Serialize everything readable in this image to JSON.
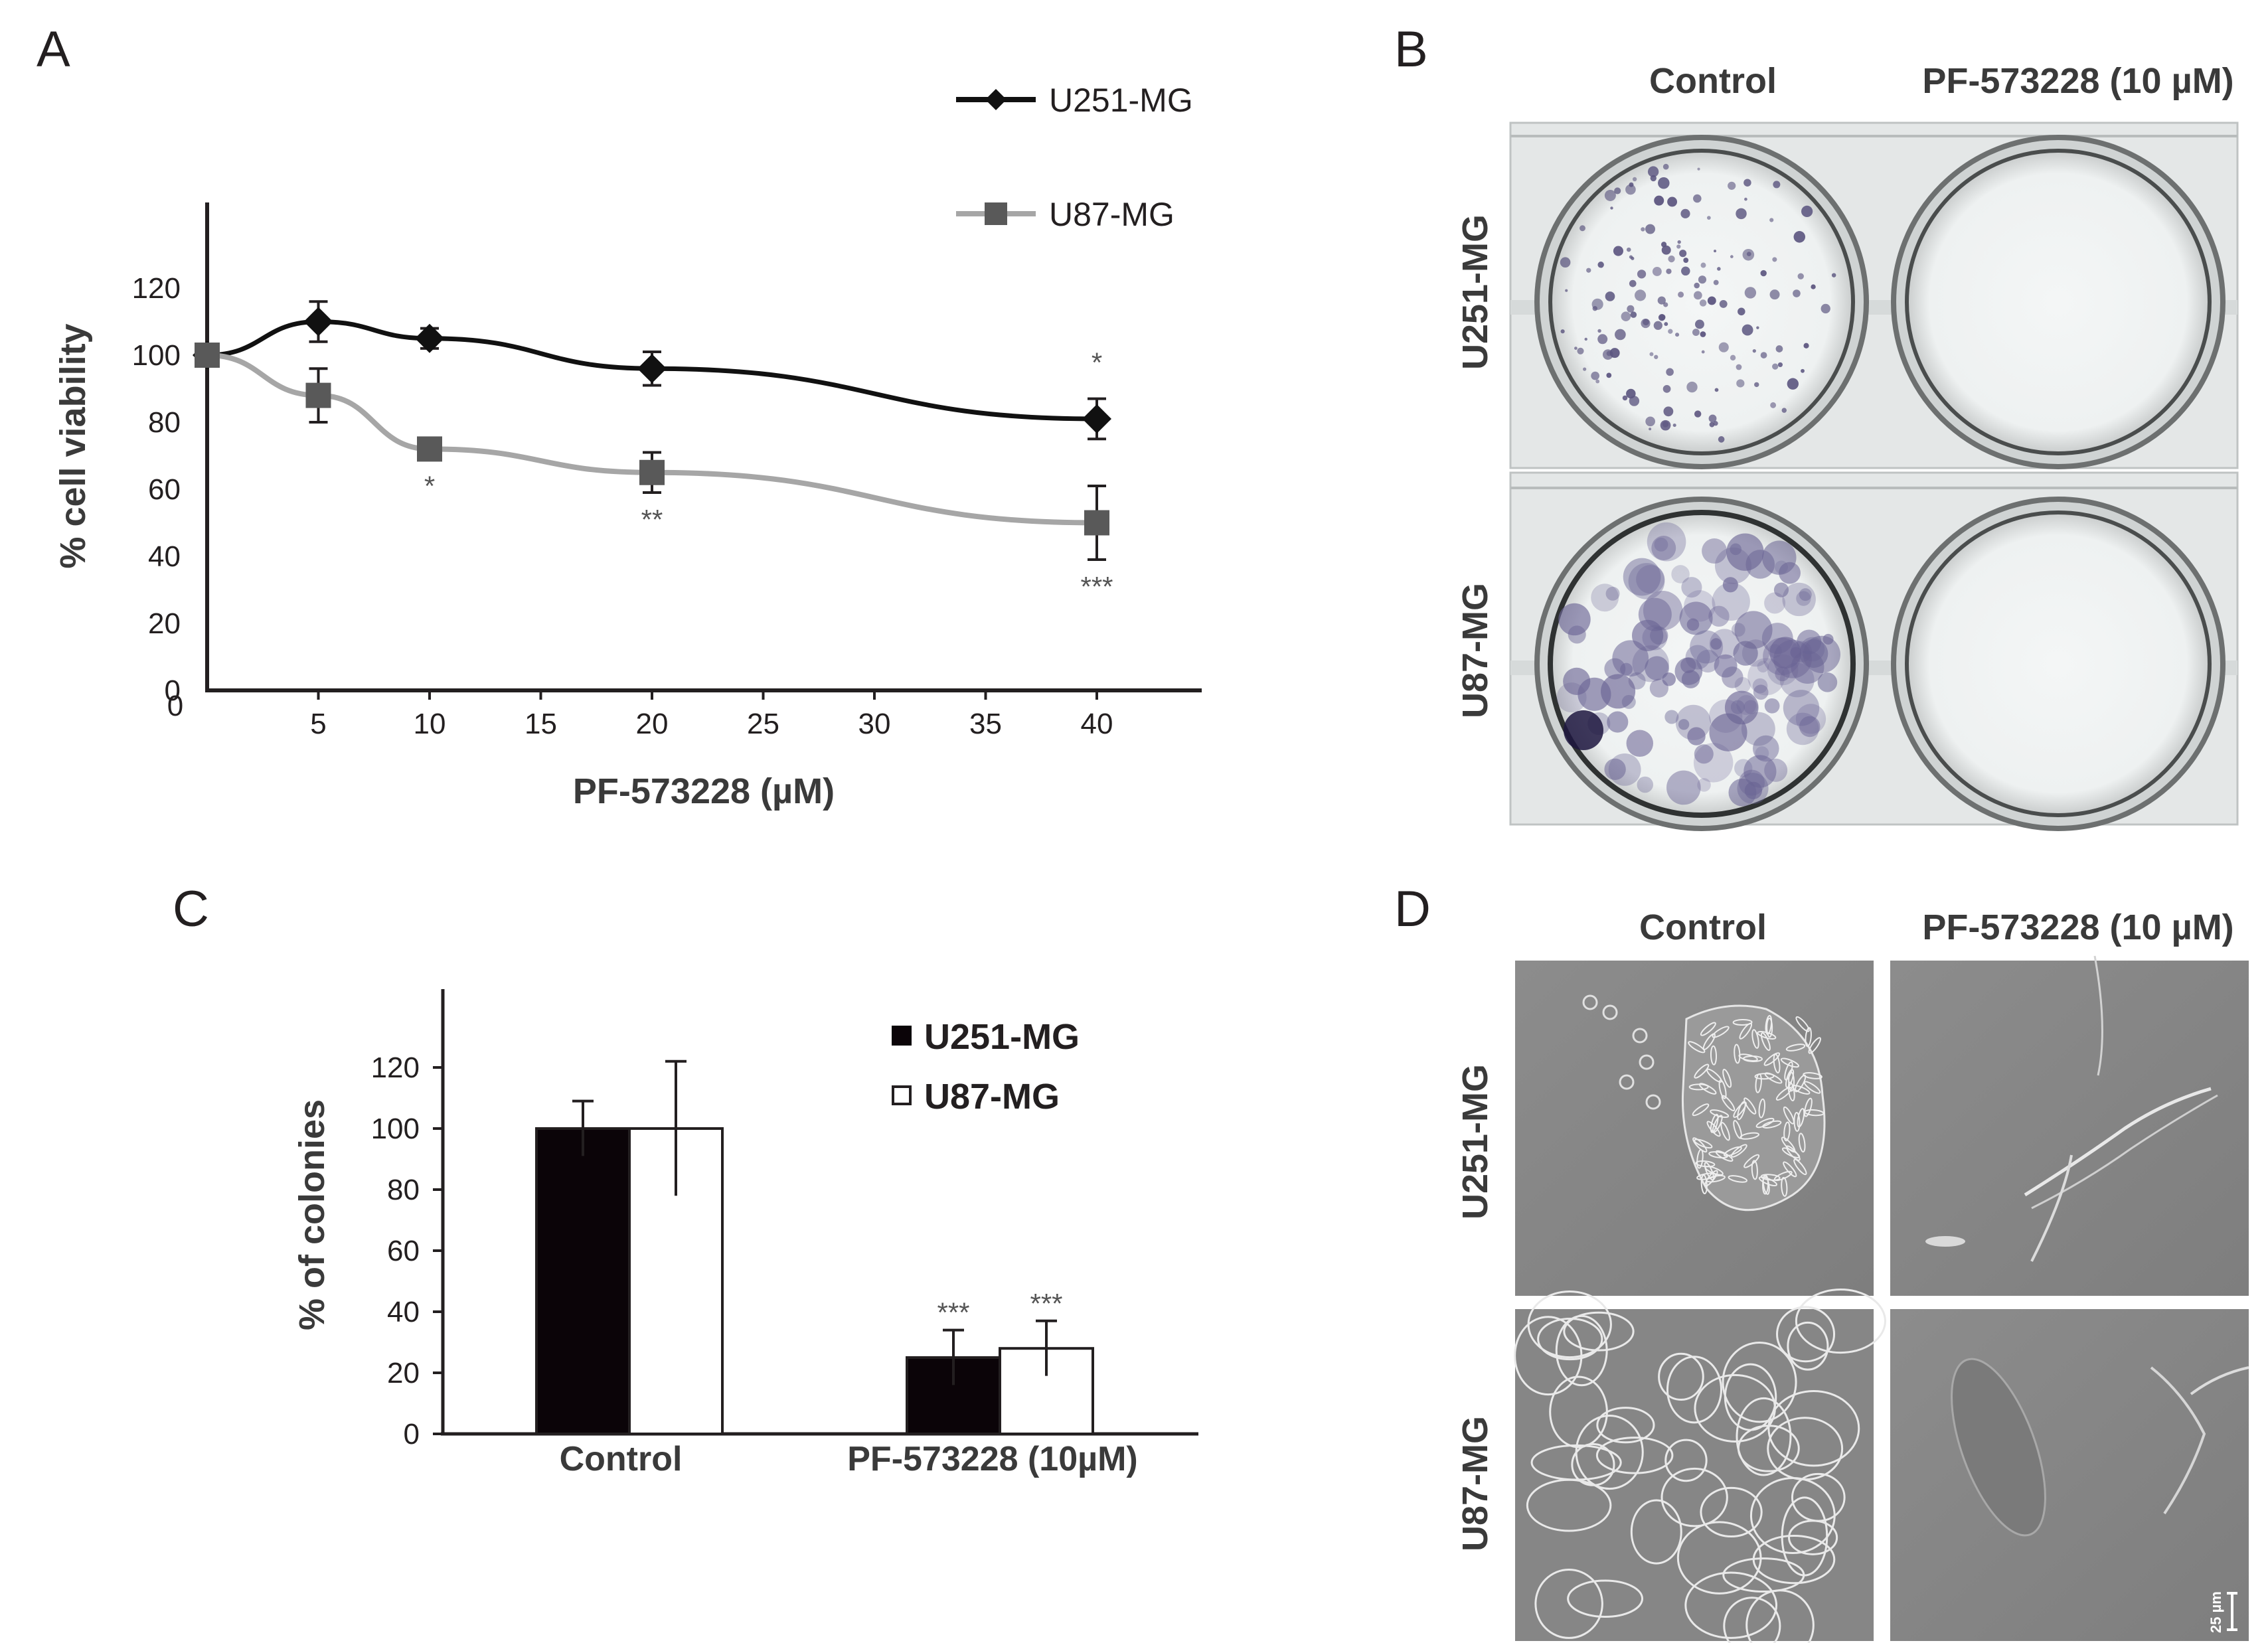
{
  "panels": {
    "A": "A",
    "B": "B",
    "C": "C",
    "D": "D"
  },
  "colors": {
    "u251_line": "#111111",
    "u87_line": "#a6a6a6",
    "u87_marker": "#595959",
    "bar_u251": "#0b0408",
    "bar_u87": "#ffffff",
    "plate_bg": "#e9ecec",
    "micro_bg": "#8a8a8a"
  },
  "chart_data": [
    {
      "type": "line",
      "panel": "A",
      "xlabel": "PF-573228 (µM)",
      "ylabel": "% cell viability",
      "xlim": [
        0,
        45
      ],
      "ylim": [
        0,
        140
      ],
      "x_ticks": [
        "5",
        "10",
        "15",
        "20",
        "25",
        "30",
        "35",
        "40"
      ],
      "y_ticks": [
        "0",
        "20",
        "40",
        "60",
        "80",
        "100",
        "120"
      ],
      "legend_position": "top-right",
      "series": [
        {
          "name": "U251-MG",
          "marker": "diamond",
          "x": [
            0,
            5,
            10,
            20,
            40
          ],
          "y": [
            100,
            110,
            105,
            96,
            81
          ],
          "err": [
            0,
            6,
            3,
            5,
            6
          ],
          "sig": [
            "",
            "",
            "",
            "",
            "*"
          ]
        },
        {
          "name": "U87-MG",
          "marker": "square",
          "x": [
            0,
            5,
            10,
            20,
            40
          ],
          "y": [
            100,
            88,
            72,
            65,
            50
          ],
          "err": [
            0,
            8,
            3,
            6,
            11
          ],
          "sig": [
            "",
            "",
            "*",
            "**",
            "***"
          ]
        }
      ]
    },
    {
      "type": "bar",
      "panel": "C",
      "ylabel": "% of colonies",
      "ylim": [
        0,
        140
      ],
      "y_ticks": [
        "0",
        "20",
        "40",
        "60",
        "80",
        "100",
        "120"
      ],
      "categories": [
        "Control",
        "PF-573228 (10µM)"
      ],
      "legend_position": "top-right",
      "series": [
        {
          "name": "U251-MG",
          "values": [
            100,
            25
          ],
          "err": [
            9,
            9
          ],
          "sig": [
            "",
            "***"
          ]
        },
        {
          "name": "U87-MG",
          "values": [
            100,
            28
          ],
          "err": [
            22,
            9
          ],
          "sig": [
            "",
            "***"
          ]
        }
      ]
    }
  ],
  "panel_B": {
    "col_labels": [
      "Control",
      "PF-573228 (10 µM)"
    ],
    "row_labels": [
      "U251-MG",
      "U87-MG"
    ]
  },
  "panel_D": {
    "col_labels": [
      "Control",
      "PF-573228 (10 µM)"
    ],
    "row_labels": [
      "U251-MG",
      "U87-MG"
    ],
    "scale_bar": "25 µm"
  }
}
